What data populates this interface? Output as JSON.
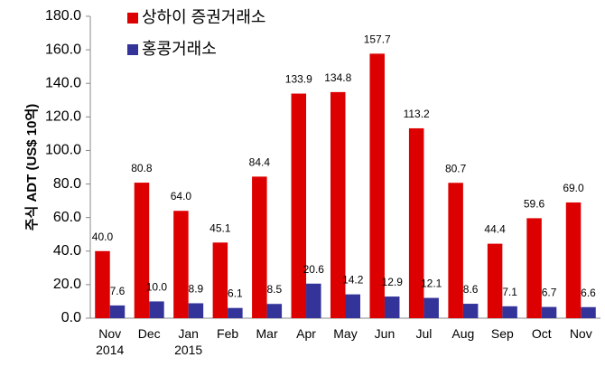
{
  "chart_data": {
    "type": "bar",
    "y_label": "주식 ADT (US$ 10억)",
    "categories": [
      "Nov\n2014",
      "Dec",
      "Jan\n2015",
      "Feb",
      "Mar",
      "Apr",
      "May",
      "Jun",
      "Jul",
      "Aug",
      "Sep",
      "Oct",
      "Nov"
    ],
    "series": [
      {
        "name": "상하이 증권거래소",
        "color": "#dd0000",
        "values": [
          40.0,
          80.8,
          64.0,
          45.1,
          84.4,
          133.9,
          134.8,
          157.7,
          113.2,
          80.7,
          44.4,
          59.6,
          69.0
        ],
        "value_labels": [
          "40.0",
          "80.8",
          "64.0",
          "45.1",
          "84.4",
          "133.9",
          "134.8",
          "157.7",
          "113.2",
          "80.7",
          "44.4",
          "59.6",
          "69.0"
        ]
      },
      {
        "name": "홍콩거래소",
        "color": "#33339a",
        "values": [
          7.6,
          10.0,
          8.9,
          6.1,
          8.5,
          20.6,
          14.2,
          12.9,
          12.1,
          8.6,
          7.1,
          6.7,
          6.6
        ],
        "value_labels": [
          "7.6",
          "10.0",
          "8.9",
          "6.1",
          "8.5",
          "20.6",
          "14.2",
          "12.9",
          "12.1",
          "8.6",
          "7.1",
          "6.7",
          "6.6"
        ]
      }
    ],
    "ylim": [
      0,
      180
    ],
    "yticks": [
      {
        "value": 0,
        "label": "0.0"
      },
      {
        "value": 20,
        "label": "20.0"
      },
      {
        "value": 40,
        "label": "40.0"
      },
      {
        "value": 60,
        "label": "60.0"
      },
      {
        "value": 80,
        "label": "80.0"
      },
      {
        "value": 100,
        "label": "100.0"
      },
      {
        "value": 120,
        "label": "120.0"
      },
      {
        "value": 140,
        "label": "140.0"
      },
      {
        "value": 160,
        "label": "160.0"
      },
      {
        "value": 180,
        "label": "180.0"
      }
    ],
    "legend": "top-left"
  }
}
